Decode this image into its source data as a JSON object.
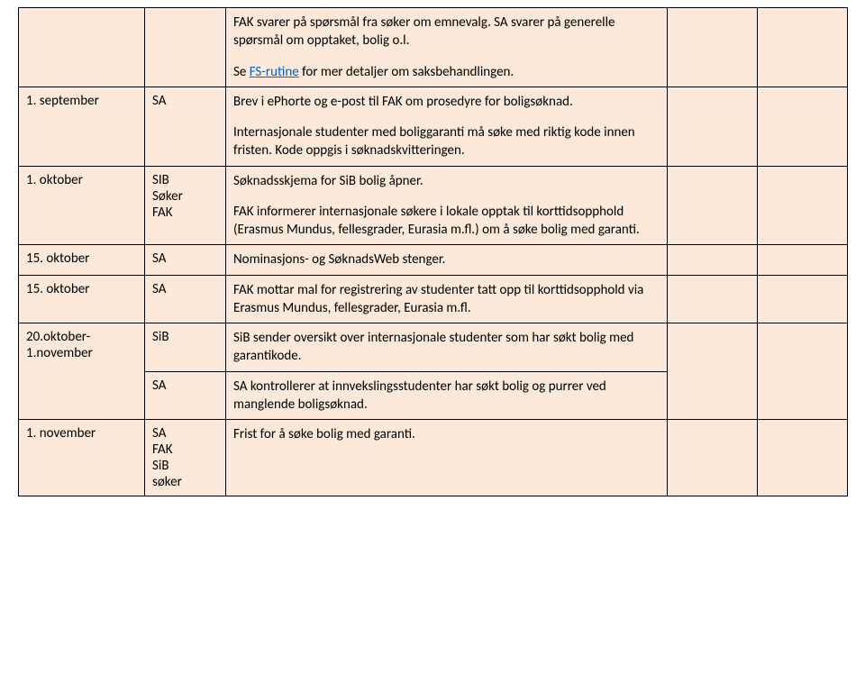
{
  "table": {
    "background_color": "#fce9d9",
    "border_color": "#000000",
    "link_color": "#0563c1",
    "rows": [
      {
        "c1": "",
        "c2": "",
        "c3_paras": [
          "FAK svarer på spørsmål fra søker om emnevalg. SA svarer på generelle spørsmål om opptaket, bolig o.l.",
          {
            "prefix": "Se ",
            "link_text": "FS-rutine",
            "suffix": " for mer detaljer om saksbehandlingen."
          }
        ],
        "c4": "",
        "c5": ""
      },
      {
        "c1": "1. september",
        "c2": "SA",
        "c3_paras": [
          "Brev i ePhorte og e-post til FAK om prosedyre for boligsøknad.",
          "Internasjonale studenter med boliggaranti må søke med riktig kode innen fristen. Kode oppgis i søknadskvitteringen."
        ],
        "c4": "",
        "c5": ""
      },
      {
        "c1": "1. oktober",
        "c2": "SIB\nSøker\nFAK",
        "c3_paras": [
          "Søknadsskjema for SiB bolig åpner.",
          "FAK informerer internasjonale søkere i lokale opptak til korttidsopphold (Erasmus Mundus, fellesgrader, Eurasia m.fl.) om å søke bolig med garanti."
        ],
        "c4": "",
        "c5": ""
      },
      {
        "c1": "15. oktober",
        "c2": "SA",
        "c3_paras": [
          "Nominasjons- og SøknadsWeb stenger."
        ],
        "c4": "",
        "c5": ""
      },
      {
        "c1": "15. oktober",
        "c2": "SA",
        "c3_paras": [
          "FAK mottar mal for registrering av studenter tatt opp til korttidsopphold via Erasmus Mundus, fellesgrader, Eurasia m.fl."
        ],
        "c4": "",
        "c5": ""
      },
      {
        "c1": "20.oktober-1.november",
        "c2": "SiB",
        "c3_paras": [
          "SiB sender oversikt over internasjonale studenter som har søkt bolig med garantikode."
        ],
        "c4": "",
        "c5": ""
      },
      {
        "c1": "",
        "c2": "SA",
        "c3_paras": [
          "SA kontrollerer at innvekslingsstudenter har søkt bolig og purrer ved manglende boligsøknad."
        ],
        "c4": "",
        "c5": ""
      },
      {
        "c1": "1. november",
        "c2": "SA\nFAK\nSiB\nsøker",
        "c3_paras": [
          "Frist for å søke bolig med garanti."
        ],
        "c4": "",
        "c5": ""
      }
    ]
  }
}
